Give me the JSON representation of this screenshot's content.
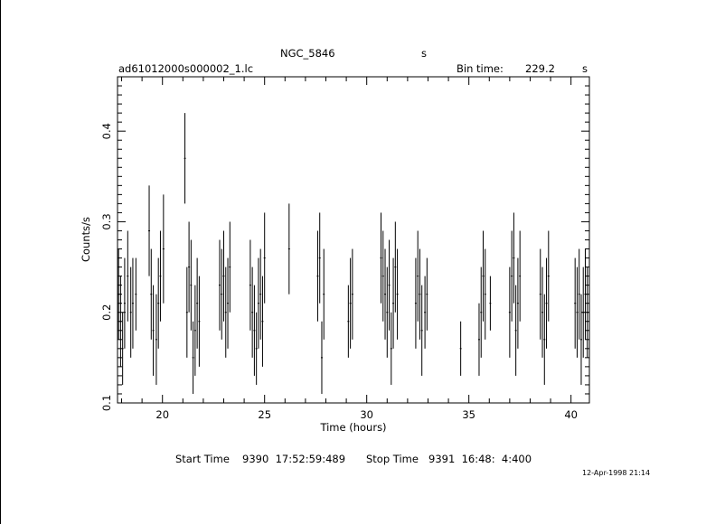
{
  "header": {
    "object": "NGC_5846",
    "object_unit": "s",
    "file": "ad61012000s000002_1.lc",
    "bin_label": "Bin time:",
    "bin_value": "229.2",
    "bin_unit": "s"
  },
  "footer": {
    "start_label": "Start Time",
    "start_value": "9390  17:52:59:489",
    "stop_label": "Stop Time",
    "stop_value": "9391  16:48:  4:400",
    "date_stamp": "12-Apr-1998 21:14"
  },
  "chart_data": {
    "type": "scatter",
    "xlabel": "Time (hours)",
    "ylabel": "Counts/s",
    "xlim": [
      17.8,
      40.9
    ],
    "ylim": [
      0.1,
      0.46
    ],
    "xticks": [
      20,
      25,
      30,
      35,
      40
    ],
    "yticks": [
      0.1,
      0.2,
      0.3,
      0.4
    ],
    "xtick_labels": [
      "20",
      "25",
      "30",
      "35",
      "40"
    ],
    "ytick_labels": [
      "0.1",
      "0.2",
      "0.3",
      "0.4"
    ],
    "grid": false,
    "error_bars": true,
    "series": [
      {
        "points": [
          [
            17.85,
            0.22,
            0.05
          ],
          [
            17.95,
            0.19,
            0.05
          ],
          [
            18.05,
            0.16,
            0.04
          ],
          [
            18.15,
            0.21,
            0.05
          ],
          [
            18.3,
            0.24,
            0.05
          ],
          [
            18.45,
            0.2,
            0.05
          ],
          [
            18.55,
            0.21,
            0.05
          ],
          [
            18.7,
            0.22,
            0.04
          ],
          [
            19.35,
            0.29,
            0.05
          ],
          [
            19.45,
            0.22,
            0.05
          ],
          [
            19.55,
            0.18,
            0.05
          ],
          [
            19.7,
            0.17,
            0.05
          ],
          [
            19.8,
            0.21,
            0.05
          ],
          [
            19.9,
            0.24,
            0.05
          ],
          [
            20.05,
            0.27,
            0.06
          ],
          [
            21.1,
            0.37,
            0.05
          ],
          [
            21.2,
            0.2,
            0.05
          ],
          [
            21.3,
            0.25,
            0.05
          ],
          [
            21.4,
            0.23,
            0.05
          ],
          [
            21.5,
            0.15,
            0.04
          ],
          [
            21.6,
            0.18,
            0.05
          ],
          [
            21.7,
            0.21,
            0.05
          ],
          [
            21.8,
            0.19,
            0.05
          ],
          [
            22.8,
            0.23,
            0.05
          ],
          [
            22.9,
            0.22,
            0.05
          ],
          [
            23.0,
            0.24,
            0.05
          ],
          [
            23.1,
            0.2,
            0.05
          ],
          [
            23.2,
            0.21,
            0.05
          ],
          [
            23.3,
            0.25,
            0.05
          ],
          [
            24.3,
            0.23,
            0.05
          ],
          [
            24.4,
            0.2,
            0.05
          ],
          [
            24.5,
            0.18,
            0.05
          ],
          [
            24.6,
            0.16,
            0.04
          ],
          [
            24.7,
            0.21,
            0.05
          ],
          [
            24.8,
            0.22,
            0.05
          ],
          [
            24.9,
            0.19,
            0.05
          ],
          [
            25.0,
            0.26,
            0.05
          ],
          [
            26.2,
            0.27,
            0.05
          ],
          [
            27.6,
            0.24,
            0.05
          ],
          [
            27.7,
            0.26,
            0.05
          ],
          [
            27.8,
            0.15,
            0.04
          ],
          [
            27.9,
            0.22,
            0.05
          ],
          [
            29.1,
            0.19,
            0.04
          ],
          [
            29.2,
            0.21,
            0.05
          ],
          [
            29.3,
            0.22,
            0.05
          ],
          [
            30.7,
            0.26,
            0.05
          ],
          [
            30.8,
            0.24,
            0.05
          ],
          [
            30.9,
            0.22,
            0.05
          ],
          [
            31.0,
            0.2,
            0.05
          ],
          [
            31.1,
            0.23,
            0.05
          ],
          [
            31.2,
            0.16,
            0.04
          ],
          [
            31.3,
            0.21,
            0.05
          ],
          [
            31.4,
            0.25,
            0.05
          ],
          [
            31.5,
            0.22,
            0.05
          ],
          [
            32.4,
            0.21,
            0.05
          ],
          [
            32.5,
            0.24,
            0.05
          ],
          [
            32.6,
            0.22,
            0.05
          ],
          [
            32.7,
            0.18,
            0.05
          ],
          [
            32.85,
            0.2,
            0.04
          ],
          [
            32.95,
            0.22,
            0.04
          ],
          [
            34.6,
            0.16,
            0.03
          ],
          [
            35.5,
            0.17,
            0.04
          ],
          [
            35.6,
            0.2,
            0.05
          ],
          [
            35.7,
            0.24,
            0.05
          ],
          [
            35.8,
            0.22,
            0.05
          ],
          [
            36.05,
            0.21,
            0.03
          ],
          [
            37.0,
            0.2,
            0.05
          ],
          [
            37.1,
            0.24,
            0.05
          ],
          [
            37.2,
            0.26,
            0.05
          ],
          [
            37.3,
            0.18,
            0.05
          ],
          [
            37.4,
            0.21,
            0.05
          ],
          [
            37.5,
            0.24,
            0.05
          ],
          [
            38.5,
            0.22,
            0.05
          ],
          [
            38.6,
            0.2,
            0.05
          ],
          [
            38.7,
            0.17,
            0.05
          ],
          [
            38.8,
            0.21,
            0.05
          ],
          [
            38.9,
            0.24,
            0.05
          ],
          [
            40.2,
            0.21,
            0.05
          ],
          [
            40.3,
            0.2,
            0.05
          ],
          [
            40.4,
            0.22,
            0.05
          ],
          [
            40.5,
            0.17,
            0.05
          ],
          [
            40.6,
            0.2,
            0.05
          ],
          [
            40.7,
            0.22,
            0.05
          ],
          [
            40.8,
            0.2,
            0.05
          ]
        ]
      }
    ]
  }
}
